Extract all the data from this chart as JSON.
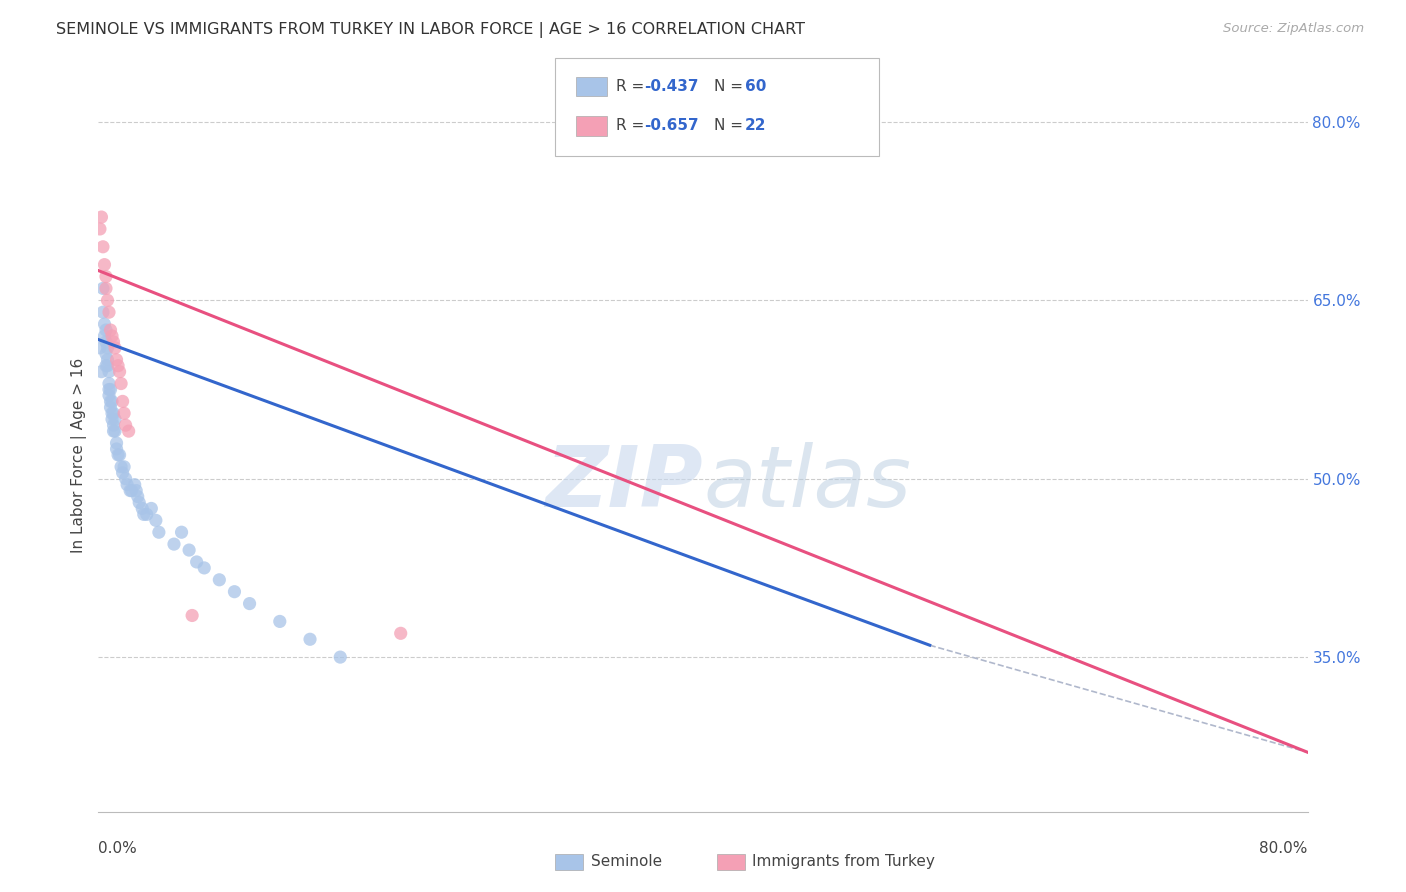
{
  "title": "SEMINOLE VS IMMIGRANTS FROM TURKEY IN LABOR FORCE | AGE > 16 CORRELATION CHART",
  "source": "Source: ZipAtlas.com",
  "ylabel": "In Labor Force | Age > 16",
  "legend_blue_R": "-0.437",
  "legend_blue_N": "60",
  "legend_pink_R": "-0.657",
  "legend_pink_N": "22",
  "legend_label_blue": "Seminole",
  "legend_label_pink": "Immigrants from Turkey",
  "blue_color": "#a8c4e8",
  "pink_color": "#f4a0b5",
  "blue_line_color": "#3366cc",
  "pink_line_color": "#e85080",
  "dashed_color": "#b0b8cc",
  "background_color": "#ffffff",
  "seminole_x": [
    0.001,
    0.002,
    0.003,
    0.003,
    0.004,
    0.004,
    0.005,
    0.005,
    0.005,
    0.005,
    0.006,
    0.006,
    0.006,
    0.007,
    0.007,
    0.007,
    0.007,
    0.008,
    0.008,
    0.008,
    0.009,
    0.009,
    0.009,
    0.01,
    0.01,
    0.01,
    0.011,
    0.011,
    0.012,
    0.012,
    0.013,
    0.014,
    0.015,
    0.016,
    0.017,
    0.018,
    0.019,
    0.021,
    0.022,
    0.024,
    0.025,
    0.026,
    0.027,
    0.029,
    0.03,
    0.032,
    0.035,
    0.038,
    0.04,
    0.05,
    0.055,
    0.06,
    0.065,
    0.07,
    0.08,
    0.09,
    0.1,
    0.12,
    0.14,
    0.16
  ],
  "seminole_y": [
    0.61,
    0.59,
    0.64,
    0.66,
    0.63,
    0.62,
    0.625,
    0.615,
    0.605,
    0.595,
    0.61,
    0.6,
    0.595,
    0.59,
    0.58,
    0.575,
    0.57,
    0.575,
    0.565,
    0.56,
    0.565,
    0.555,
    0.55,
    0.555,
    0.545,
    0.54,
    0.55,
    0.54,
    0.53,
    0.525,
    0.52,
    0.52,
    0.51,
    0.505,
    0.51,
    0.5,
    0.495,
    0.49,
    0.49,
    0.495,
    0.49,
    0.485,
    0.48,
    0.475,
    0.47,
    0.47,
    0.475,
    0.465,
    0.455,
    0.445,
    0.455,
    0.44,
    0.43,
    0.425,
    0.415,
    0.405,
    0.395,
    0.38,
    0.365,
    0.35
  ],
  "turkey_x": [
    0.001,
    0.002,
    0.003,
    0.004,
    0.005,
    0.005,
    0.006,
    0.007,
    0.008,
    0.009,
    0.01,
    0.011,
    0.012,
    0.013,
    0.014,
    0.015,
    0.016,
    0.017,
    0.018,
    0.02,
    0.062,
    0.2
  ],
  "turkey_y": [
    0.71,
    0.72,
    0.695,
    0.68,
    0.67,
    0.66,
    0.65,
    0.64,
    0.625,
    0.62,
    0.615,
    0.61,
    0.6,
    0.595,
    0.59,
    0.58,
    0.565,
    0.555,
    0.545,
    0.54,
    0.385,
    0.37
  ],
  "blue_line_x": [
    0.0,
    0.55
  ],
  "blue_line_y": [
    0.617,
    0.36
  ],
  "pink_line_x": [
    0.0,
    0.8
  ],
  "pink_line_y": [
    0.675,
    0.27
  ],
  "dashed_line_x": [
    0.55,
    0.8
  ],
  "dashed_line_y": [
    0.36,
    0.27
  ],
  "xlim": [
    0.0,
    0.8
  ],
  "ylim": [
    0.22,
    0.82
  ],
  "yticks": [
    0.35,
    0.5,
    0.65,
    0.8
  ],
  "ytick_labels": [
    "35.0%",
    "50.0%",
    "65.0%",
    "80.0%"
  ]
}
